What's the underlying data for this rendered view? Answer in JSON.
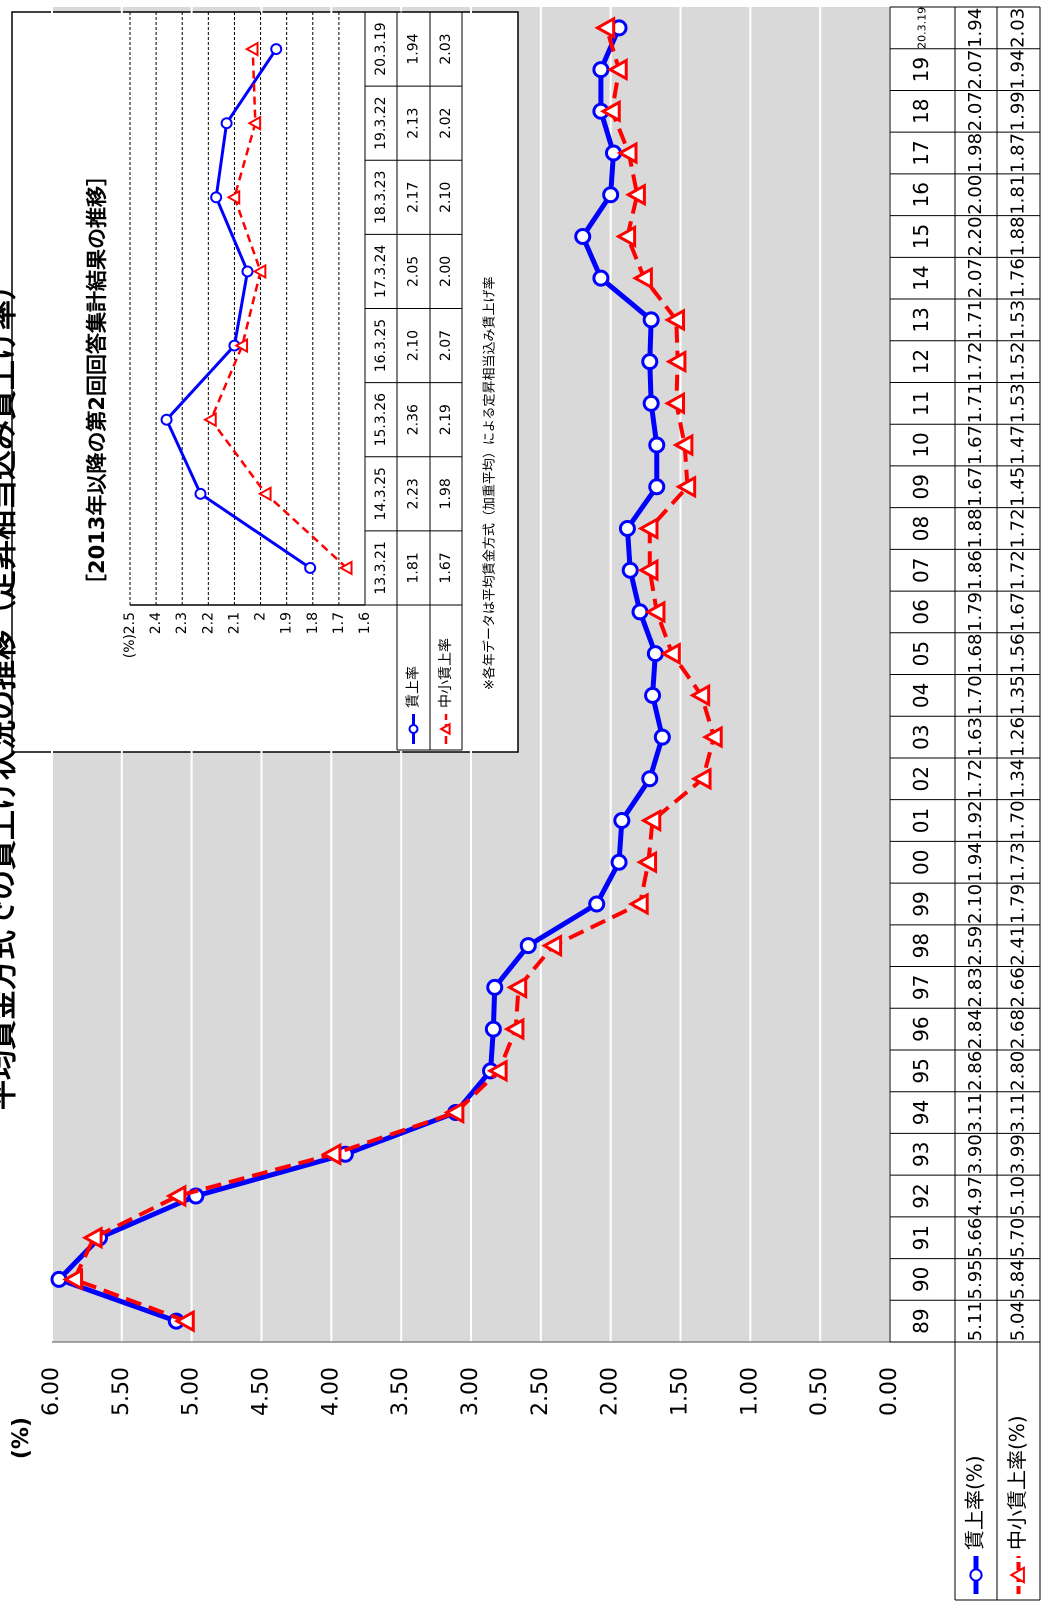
{
  "chart_data": [
    {
      "type": "line",
      "title": "平均賃金方式での賃上げ状況の推移（定昇相当込み賃上げ率）",
      "ylabel": "(%)",
      "categories": [
        "89",
        "90",
        "91",
        "92",
        "93",
        "94",
        "95",
        "96",
        "97",
        "98",
        "99",
        "00",
        "01",
        "02",
        "03",
        "04",
        "05",
        "06",
        "07",
        "08",
        "09",
        "10",
        "11",
        "12",
        "13",
        "14",
        "15",
        "16",
        "17",
        "18",
        "19",
        "20.3.19"
      ],
      "series": [
        {
          "name": "賃上率(%)",
          "color": "#0000ff",
          "marker": "circle",
          "line_style": "solid",
          "values": [
            5.11,
            5.95,
            5.66,
            4.97,
            3.9,
            3.11,
            2.86,
            2.84,
            2.83,
            2.59,
            2.1,
            1.94,
            1.92,
            1.72,
            1.63,
            1.7,
            1.68,
            1.79,
            1.86,
            1.88,
            1.67,
            1.67,
            1.71,
            1.72,
            1.71,
            2.07,
            2.2,
            2.0,
            1.98,
            2.07,
            2.07,
            1.94
          ],
          "value_labels": [
            "5.11",
            "5.95",
            "5.66",
            "4.97",
            "3.90",
            "3.11",
            "2.86",
            "2.84",
            "2.83",
            "2.59",
            "2.10",
            "1.94",
            "1.92",
            "1.72",
            "1.63",
            "1.70",
            "1.68",
            "1.79",
            "1.86",
            "1.88",
            "1.67",
            "1.67",
            "1.71",
            "1.72",
            "1.71",
            "2.07",
            "2.20",
            "2.00",
            "1.98",
            "2.07",
            "2.07",
            "1.94"
          ]
        },
        {
          "name": "中小賃上率(%)",
          "color": "#ff0000",
          "marker": "triangle",
          "line_style": "dashed",
          "values": [
            5.04,
            5.84,
            5.7,
            5.1,
            3.99,
            3.11,
            2.8,
            2.68,
            2.66,
            2.41,
            1.79,
            1.73,
            1.7,
            1.34,
            1.26,
            1.35,
            1.56,
            1.67,
            1.72,
            1.72,
            1.45,
            1.47,
            1.53,
            1.52,
            1.53,
            1.76,
            1.88,
            1.81,
            1.87,
            1.99,
            1.94,
            2.03
          ],
          "value_labels": [
            "5.04",
            "5.84",
            "5.70",
            "5.10",
            "3.99",
            "3.11",
            "2.80",
            "2.68",
            "2.66",
            "2.41",
            "1.79",
            "1.73",
            "1.70",
            "1.34",
            "1.26",
            "1.35",
            "1.56",
            "1.67",
            "1.72",
            "1.72",
            "1.45",
            "1.47",
            "1.53",
            "1.52",
            "1.53",
            "1.76",
            "1.88",
            "1.81",
            "1.87",
            "1.99",
            "1.94",
            "2.03"
          ]
        }
      ],
      "ylim": [
        0,
        6
      ],
      "yticks": [
        {
          "value": 0,
          "label": "0.00"
        },
        {
          "value": 0.5,
          "label": "0.50"
        },
        {
          "value": 1,
          "label": "1.00"
        },
        {
          "value": 1.5,
          "label": "1.50"
        },
        {
          "value": 2,
          "label": "2.00"
        },
        {
          "value": 2.5,
          "label": "2.50"
        },
        {
          "value": 3,
          "label": "3.00"
        },
        {
          "value": 3.5,
          "label": "3.50"
        },
        {
          "value": 4,
          "label": "4.00"
        },
        {
          "value": 4.5,
          "label": "4.50"
        },
        {
          "value": 5,
          "label": "5.00"
        },
        {
          "value": 5.5,
          "label": "5.50"
        },
        {
          "value": 6,
          "label": "6.00"
        }
      ],
      "grid": true
    },
    {
      "type": "line",
      "title": "［2013年以降の第2回回答集計結果の推移］",
      "ylabel": "(%)",
      "note": "※各年データは平均賃金方式（加重平均）による定昇相当込み賃上げ率",
      "categories": [
        "13.3.21",
        "14.3.25",
        "15.3.26",
        "16.3.25",
        "17.3.24",
        "18.3.23",
        "19.3.22",
        "20.3.19"
      ],
      "series": [
        {
          "name": "賃上率",
          "color": "#0000ff",
          "marker": "circle",
          "line_style": "solid",
          "values": [
            1.81,
            2.23,
            2.36,
            2.1,
            2.05,
            2.17,
            2.13,
            1.94
          ],
          "value_labels": [
            "1.81",
            "2.23",
            "2.36",
            "2.10",
            "2.05",
            "2.17",
            "2.13",
            "1.94"
          ]
        },
        {
          "name": "中小賃上率",
          "color": "#ff0000",
          "marker": "triangle",
          "line_style": "dashed",
          "values": [
            1.67,
            1.98,
            2.19,
            2.07,
            2.0,
            2.1,
            2.02,
            2.03
          ],
          "value_labels": [
            "1.67",
            "1.98",
            "2.19",
            "2.07",
            "2.00",
            "2.10",
            "2.02",
            "2.03"
          ]
        }
      ],
      "ylim": [
        1.6,
        2.5
      ],
      "yticks": [
        1.6,
        1.7,
        1.8,
        1.9,
        2,
        2.1,
        2.2,
        2.3,
        2.4,
        2.5
      ],
      "grid": true
    }
  ]
}
